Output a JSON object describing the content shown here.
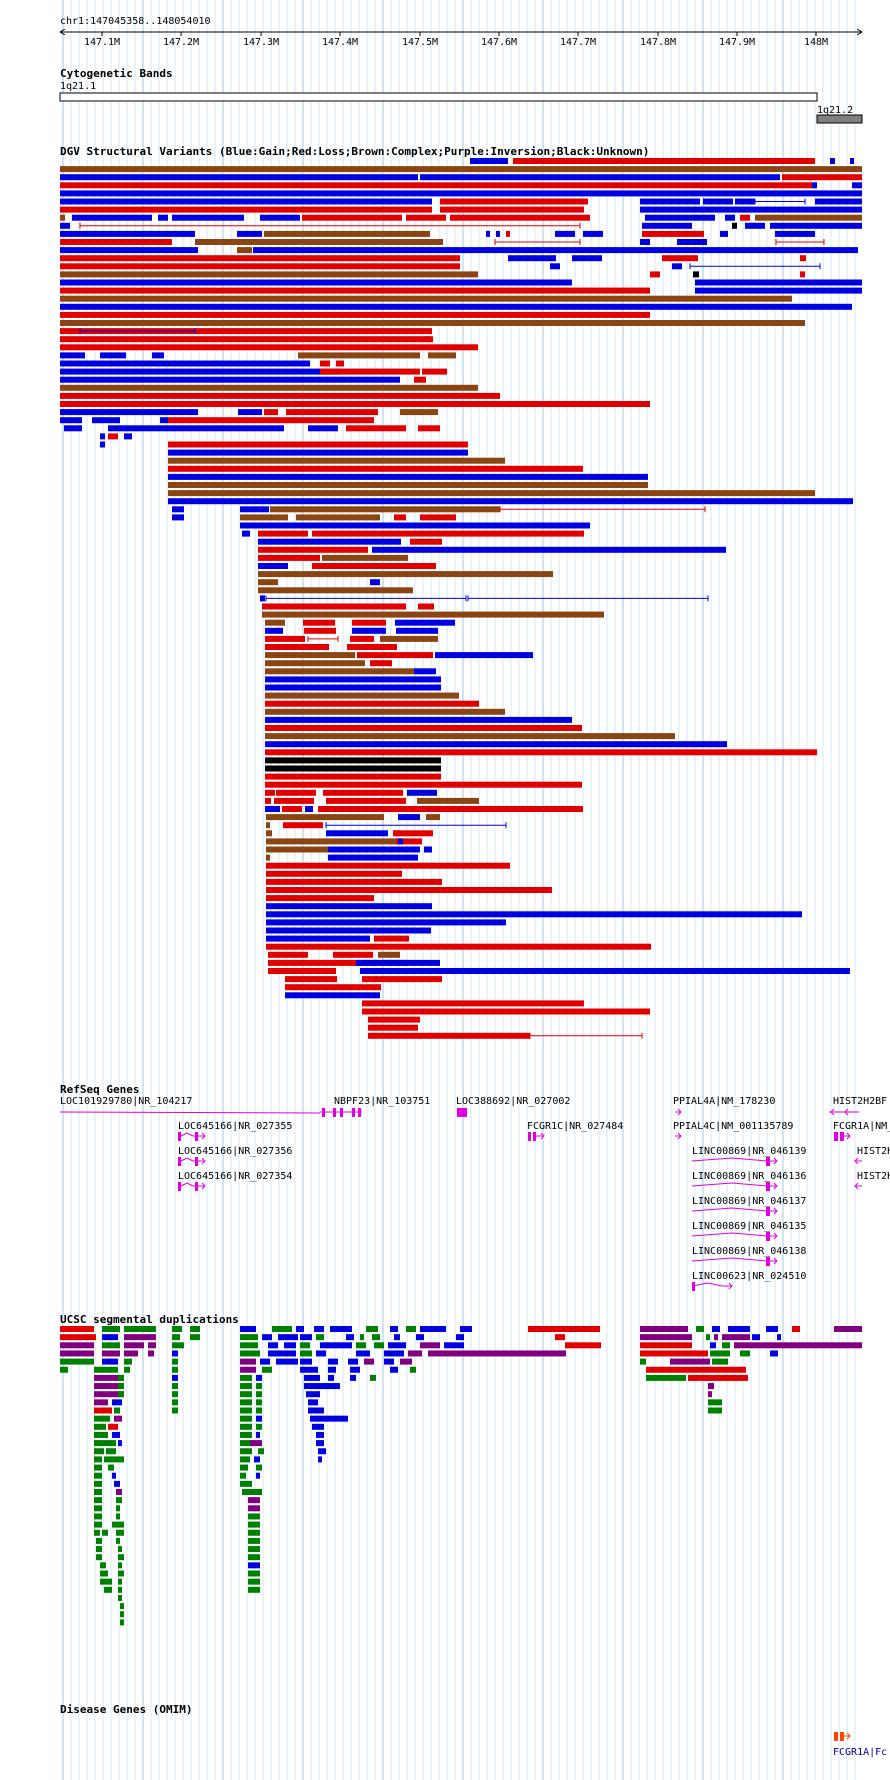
{
  "position_label": "chr1:147045358..148054010",
  "ruler": {
    "ticks": [
      "147.1M",
      "147.2M",
      "147.3M",
      "147.4M",
      "147.5M",
      "147.6M",
      "147.7M",
      "147.8M",
      "147.9M",
      "148M"
    ]
  },
  "tracks": {
    "cytoband": {
      "title": "Cytogenetic Bands",
      "bands": [
        {
          "label": "1q21.1",
          "color": "#ffffff"
        },
        {
          "label": "1q21.2",
          "color": "#808080"
        }
      ]
    },
    "dgv": {
      "title": "DGV Structural Variants (Blue:Gain;Red:Loss;Brown:Complex;Purple:Inversion;Black:Unknown)",
      "legend_colors": {
        "gain": "#0000e0",
        "loss": "#e00000",
        "complex": "#8b4513",
        "inversion": "#800080",
        "unknown": "#000000"
      }
    },
    "refseq": {
      "title": "RefSeq Genes",
      "genes": [
        "LOC101929780|NR_104217",
        "NBPF23|NR_103751",
        "LOC388692|NR_027002",
        "PPIAL4A|NM_178230",
        "HIST2H2BF",
        "LOC645166|NR_027355",
        "FCGR1C|NR_027484",
        "PPIAL4C|NM_001135789",
        "FCGR1A|NM_",
        "LOC645166|NR_027356",
        "LINC00869|NR_046139",
        "HIST2H",
        "LOC645166|NR_027354",
        "LINC00869|NR_046136",
        "HIST2H",
        "LINC00869|NR_046137",
        "LINC00869|NR_046135",
        "LINC00869|NR_046138",
        "LINC00623|NR_024510"
      ],
      "color": "#e000e0"
    },
    "segdup": {
      "title": "UCSC segmental duplications",
      "colors": [
        "#e00000",
        "#800080",
        "#008000",
        "#0000e0"
      ]
    },
    "omim": {
      "title": "Disease Genes (OMIM)",
      "genes": [
        "FCGR1A|Fc"
      ],
      "color": "#ff4500"
    }
  }
}
